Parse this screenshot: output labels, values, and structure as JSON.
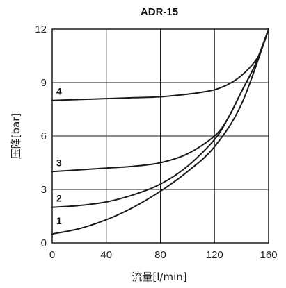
{
  "chart_data": {
    "type": "line",
    "title": "ADR-15",
    "xlabel": "流量[l/min]",
    "ylabel": "压降[bar]",
    "xlim": [
      0,
      160
    ],
    "ylim": [
      0,
      12
    ],
    "x_ticks": [
      "0",
      "40",
      "80",
      "120",
      "160"
    ],
    "y_ticks": [
      "0",
      "3",
      "6",
      "9",
      "12"
    ],
    "grid": true,
    "series": [
      {
        "name": "1",
        "x": [
          0,
          20,
          40,
          60,
          80,
          100,
          120,
          140,
          160
        ],
        "y": [
          0.5,
          0.8,
          1.3,
          2.0,
          2.9,
          4.0,
          5.4,
          7.8,
          12.0
        ]
      },
      {
        "name": "2",
        "x": [
          0,
          20,
          40,
          60,
          80,
          100,
          120,
          130,
          140,
          150,
          160
        ],
        "y": [
          2.0,
          2.1,
          2.3,
          2.7,
          3.3,
          4.3,
          5.8,
          7.0,
          8.5,
          10.0,
          12.0
        ]
      },
      {
        "name": "3",
        "x": [
          0,
          20,
          40,
          60,
          80,
          100,
          120,
          130,
          140,
          150,
          160
        ],
        "y": [
          4.0,
          4.1,
          4.2,
          4.3,
          4.5,
          5.0,
          6.0,
          7.0,
          8.5,
          10.0,
          12.0
        ]
      },
      {
        "name": "4",
        "x": [
          0,
          20,
          40,
          60,
          80,
          100,
          110,
          120,
          130,
          140,
          150,
          155,
          160
        ],
        "y": [
          8.0,
          8.05,
          8.1,
          8.15,
          8.2,
          8.35,
          8.45,
          8.6,
          8.9,
          9.4,
          10.2,
          10.9,
          12.0
        ]
      }
    ]
  }
}
